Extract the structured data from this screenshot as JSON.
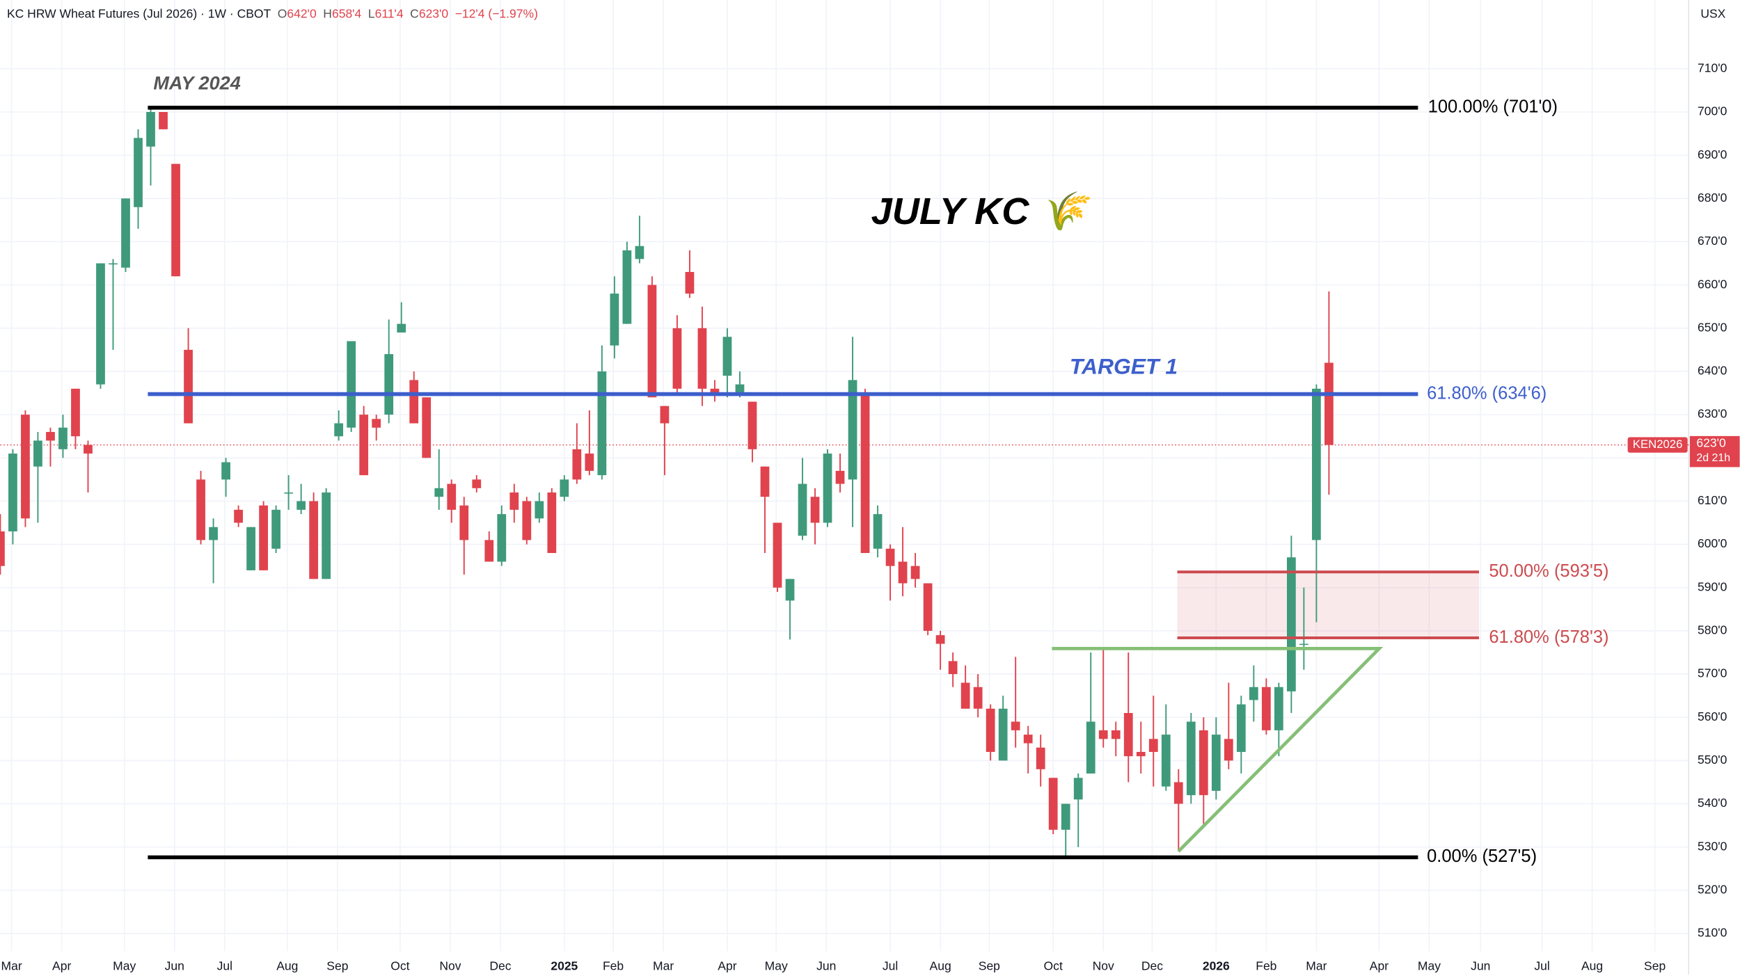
{
  "chart_data": {
    "type": "candlestick",
    "header": {
      "title": "KC HRW Wheat Futures (Jul 2026) · 1W · CBOT",
      "ohlc": [
        {
          "key": "O",
          "value": "642'0"
        },
        {
          "key": "H",
          "value": "658'4"
        },
        {
          "key": "L",
          "value": "611'4"
        },
        {
          "key": "C",
          "value": "623'0"
        }
      ],
      "change": "−12'4 (−1.97%)"
    },
    "currency": "USX",
    "up_color": "#3f9a7b",
    "down_color": "#e0434d",
    "grid": true,
    "xlim": [
      0,
      134.7
    ],
    "ylim": [
      505.9,
      725.9
    ],
    "yticks": [
      {
        "value": 510,
        "label": "510'0"
      },
      {
        "value": 520,
        "label": "520'0"
      },
      {
        "value": 530,
        "label": "530'0"
      },
      {
        "value": 540,
        "label": "540'0"
      },
      {
        "value": 550,
        "label": "550'0"
      },
      {
        "value": 560,
        "label": "560'0"
      },
      {
        "value": 570,
        "label": "570'0"
      },
      {
        "value": 580,
        "label": "580'0"
      },
      {
        "value": 590,
        "label": "590'0"
      },
      {
        "value": 600,
        "label": "600'0"
      },
      {
        "value": 610,
        "label": "610'0"
      },
      {
        "value": 620,
        "label": "620'0"
      },
      {
        "value": 630,
        "label": "630'0"
      },
      {
        "value": 640,
        "label": "640'0"
      },
      {
        "value": 650,
        "label": "650'0"
      },
      {
        "value": 660,
        "label": "660'0"
      },
      {
        "value": 670,
        "label": "670'0"
      },
      {
        "value": 680,
        "label": "680'0"
      },
      {
        "value": 690,
        "label": "690'0"
      },
      {
        "value": 700,
        "label": "700'0"
      },
      {
        "value": 710,
        "label": "710'0"
      }
    ],
    "xticks": [
      {
        "value": 0.9,
        "label": "Mar"
      },
      {
        "value": 4.9,
        "label": "Apr"
      },
      {
        "value": 9.9,
        "label": "May"
      },
      {
        "value": 13.9,
        "label": "Jun"
      },
      {
        "value": 17.9,
        "label": "Jul"
      },
      {
        "value": 22.9,
        "label": "Aug"
      },
      {
        "value": 26.9,
        "label": "Sep"
      },
      {
        "value": 31.9,
        "label": "Oct"
      },
      {
        "value": 35.9,
        "label": "Nov"
      },
      {
        "value": 39.9,
        "label": "Dec"
      },
      {
        "value": 45.0,
        "label": "2025"
      },
      {
        "value": 48.9,
        "label": "Feb"
      },
      {
        "value": 52.9,
        "label": "Mar"
      },
      {
        "value": 58.0,
        "label": "Apr"
      },
      {
        "value": 61.9,
        "label": "May"
      },
      {
        "value": 65.9,
        "label": "Jun"
      },
      {
        "value": 71.0,
        "label": "Jul"
      },
      {
        "value": 75.0,
        "label": "Aug"
      },
      {
        "value": 78.9,
        "label": "Sep"
      },
      {
        "value": 84.0,
        "label": "Oct"
      },
      {
        "value": 88.0,
        "label": "Nov"
      },
      {
        "value": 91.9,
        "label": "Dec"
      },
      {
        "value": 97.0,
        "label": "2026"
      },
      {
        "value": 101.0,
        "label": "Feb"
      },
      {
        "value": 105.0,
        "label": "Mar"
      },
      {
        "value": 110.0,
        "label": "Apr"
      },
      {
        "value": 114.0,
        "label": "May"
      },
      {
        "value": 118.1,
        "label": "Jun"
      },
      {
        "value": 123.0,
        "label": "Jul"
      },
      {
        "value": 127.0,
        "label": "Aug"
      },
      {
        "value": 132.0,
        "label": "Sep"
      }
    ],
    "candles": [
      {
        "o": 603,
        "h": 607,
        "l": 593,
        "c": 595
      },
      {
        "o": 603,
        "h": 622,
        "l": 600,
        "c": 621
      },
      {
        "o": 630,
        "h": 631,
        "l": 604,
        "c": 606
      },
      {
        "o": 618,
        "h": 626,
        "l": 605,
        "c": 624
      },
      {
        "o": 626,
        "h": 627,
        "l": 618,
        "c": 624
      },
      {
        "o": 622,
        "h": 630,
        "l": 620,
        "c": 627
      },
      {
        "o": 636,
        "h": 636,
        "l": 622,
        "c": 625
      },
      {
        "o": 623,
        "h": 624,
        "l": 612,
        "c": 621
      },
      {
        "o": 637,
        "h": 665,
        "l": 636,
        "c": 665
      },
      {
        "o": 665,
        "h": 666,
        "l": 645,
        "c": 665
      },
      {
        "o": 664,
        "h": 680,
        "l": 663,
        "c": 680
      },
      {
        "o": 678,
        "h": 696,
        "l": 673,
        "c": 694
      },
      {
        "o": 692,
        "h": 701,
        "l": 683,
        "c": 700
      },
      {
        "o": 700,
        "h": 700,
        "l": 696,
        "c": 696
      },
      {
        "o": 688,
        "h": 688,
        "l": 662,
        "c": 662
      },
      {
        "o": 645,
        "h": 650,
        "l": 628,
        "c": 628
      },
      {
        "o": 615,
        "h": 617,
        "l": 600,
        "c": 601
      },
      {
        "o": 601,
        "h": 606,
        "l": 591,
        "c": 604
      },
      {
        "o": 615,
        "h": 620,
        "l": 611,
        "c": 619
      },
      {
        "o": 608,
        "h": 609,
        "l": 604,
        "c": 605
      },
      {
        "o": 594,
        "h": 604,
        "l": 594,
        "c": 604
      },
      {
        "o": 609,
        "h": 610,
        "l": 594,
        "c": 594
      },
      {
        "o": 599,
        "h": 609,
        "l": 598,
        "c": 608
      },
      {
        "o": 612,
        "h": 616,
        "l": 608,
        "c": 612
      },
      {
        "o": 608,
        "h": 614,
        "l": 607,
        "c": 610
      },
      {
        "o": 610,
        "h": 612,
        "l": 592,
        "c": 592
      },
      {
        "o": 592,
        "h": 613,
        "l": 592,
        "c": 612
      },
      {
        "o": 625,
        "h": 631,
        "l": 624,
        "c": 628
      },
      {
        "o": 627,
        "h": 647,
        "l": 626,
        "c": 647
      },
      {
        "o": 630,
        "h": 632,
        "l": 616,
        "c": 616
      },
      {
        "o": 629,
        "h": 630,
        "l": 624,
        "c": 627
      },
      {
        "o": 630,
        "h": 652,
        "l": 628,
        "c": 644
      },
      {
        "o": 649,
        "h": 656,
        "l": 649,
        "c": 651
      },
      {
        "o": 638,
        "h": 640,
        "l": 628,
        "c": 628
      },
      {
        "o": 634,
        "h": 634,
        "l": 620,
        "c": 620
      },
      {
        "o": 611,
        "h": 622,
        "l": 608,
        "c": 613
      },
      {
        "o": 614,
        "h": 615,
        "l": 605,
        "c": 608
      },
      {
        "o": 609,
        "h": 611,
        "l": 593,
        "c": 601
      },
      {
        "o": 615,
        "h": 616,
        "l": 612,
        "c": 613
      },
      {
        "o": 601,
        "h": 603,
        "l": 596,
        "c": 596
      },
      {
        "o": 596,
        "h": 609,
        "l": 595,
        "c": 607
      },
      {
        "o": 612,
        "h": 614,
        "l": 605,
        "c": 608
      },
      {
        "o": 610,
        "h": 611,
        "l": 600,
        "c": 601
      },
      {
        "o": 606,
        "h": 612,
        "l": 605,
        "c": 610
      },
      {
        "o": 612,
        "h": 613,
        "l": 598,
        "c": 598
      },
      {
        "o": 611,
        "h": 616,
        "l": 610,
        "c": 615
      },
      {
        "o": 622,
        "h": 628,
        "l": 614,
        "c": 615
      },
      {
        "o": 621,
        "h": 631,
        "l": 616,
        "c": 617
      },
      {
        "o": 616,
        "h": 646,
        "l": 615,
        "c": 640
      },
      {
        "o": 646,
        "h": 662,
        "l": 643,
        "c": 658
      },
      {
        "o": 651,
        "h": 670,
        "l": 651,
        "c": 668
      },
      {
        "o": 666,
        "h": 676,
        "l": 665,
        "c": 669
      },
      {
        "o": 660,
        "h": 662,
        "l": 634,
        "c": 634
      },
      {
        "o": 632,
        "h": 632,
        "l": 616,
        "c": 628
      },
      {
        "o": 650,
        "h": 653,
        "l": 635,
        "c": 636
      },
      {
        "o": 663,
        "h": 668,
        "l": 657,
        "c": 658
      },
      {
        "o": 650,
        "h": 655,
        "l": 632,
        "c": 636
      },
      {
        "o": 636,
        "h": 638,
        "l": 633,
        "c": 635
      },
      {
        "o": 639,
        "h": 650,
        "l": 634,
        "c": 648
      },
      {
        "o": 635,
        "h": 640,
        "l": 634,
        "c": 637
      },
      {
        "o": 633,
        "h": 633,
        "l": 619,
        "c": 622
      },
      {
        "o": 618,
        "h": 618,
        "l": 598,
        "c": 611
      },
      {
        "o": 605,
        "h": 605,
        "l": 589,
        "c": 590
      },
      {
        "o": 587,
        "h": 592,
        "l": 578,
        "c": 592
      },
      {
        "o": 602,
        "h": 620,
        "l": 601,
        "c": 614
      },
      {
        "o": 611,
        "h": 613,
        "l": 600,
        "c": 605
      },
      {
        "o": 605,
        "h": 622,
        "l": 604,
        "c": 621
      },
      {
        "o": 617,
        "h": 621,
        "l": 612,
        "c": 614
      },
      {
        "o": 615,
        "h": 648,
        "l": 604,
        "c": 638
      },
      {
        "o": 635,
        "h": 636,
        "l": 598,
        "c": 598
      },
      {
        "o": 599,
        "h": 609,
        "l": 597,
        "c": 607
      },
      {
        "o": 599,
        "h": 600,
        "l": 587,
        "c": 595
      },
      {
        "o": 596,
        "h": 604,
        "l": 588,
        "c": 591
      },
      {
        "o": 595,
        "h": 598,
        "l": 590,
        "c": 592
      },
      {
        "o": 591,
        "h": 591,
        "l": 579,
        "c": 580
      },
      {
        "o": 579,
        "h": 580,
        "l": 571,
        "c": 577
      },
      {
        "o": 573,
        "h": 575,
        "l": 567,
        "c": 570
      },
      {
        "o": 568,
        "h": 572,
        "l": 562,
        "c": 562
      },
      {
        "o": 567,
        "h": 570,
        "l": 560,
        "c": 562
      },
      {
        "o": 562,
        "h": 563,
        "l": 550,
        "c": 552
      },
      {
        "o": 550,
        "h": 565,
        "l": 550,
        "c": 562
      },
      {
        "o": 559,
        "h": 574,
        "l": 553,
        "c": 557
      },
      {
        "o": 556,
        "h": 558,
        "l": 547,
        "c": 554
      },
      {
        "o": 553,
        "h": 556,
        "l": 544,
        "c": 548
      },
      {
        "o": 546,
        "h": 546,
        "l": 533,
        "c": 534
      },
      {
        "o": 534,
        "h": 540,
        "l": 527.6,
        "c": 540
      },
      {
        "o": 541,
        "h": 547,
        "l": 530,
        "c": 546
      },
      {
        "o": 547,
        "h": 575,
        "l": 547,
        "c": 559
      },
      {
        "o": 557,
        "h": 576,
        "l": 553,
        "c": 555
      },
      {
        "o": 557,
        "h": 559,
        "l": 551,
        "c": 555
      },
      {
        "o": 561,
        "h": 575,
        "l": 545,
        "c": 551
      },
      {
        "o": 552,
        "h": 559,
        "l": 547,
        "c": 551
      },
      {
        "o": 555,
        "h": 565,
        "l": 544,
        "c": 552
      },
      {
        "o": 544,
        "h": 563,
        "l": 543,
        "c": 556
      },
      {
        "o": 545,
        "h": 548,
        "l": 529,
        "c": 540
      },
      {
        "o": 542,
        "h": 561,
        "l": 540,
        "c": 559
      },
      {
        "o": 557,
        "h": 560,
        "l": 535,
        "c": 542
      },
      {
        "o": 543,
        "h": 560,
        "l": 541,
        "c": 556
      },
      {
        "o": 555,
        "h": 568,
        "l": 548,
        "c": 550
      },
      {
        "o": 552,
        "h": 565,
        "l": 547,
        "c": 563
      },
      {
        "o": 564,
        "h": 572,
        "l": 559,
        "c": 567
      },
      {
        "o": 567,
        "h": 569,
        "l": 556,
        "c": 557
      },
      {
        "o": 557,
        "h": 568,
        "l": 551,
        "c": 567
      },
      {
        "o": 566,
        "h": 602,
        "l": 561,
        "c": 597
      },
      {
        "o": 577,
        "h": 590,
        "l": 571,
        "c": 577
      },
      {
        "o": 601,
        "h": 637,
        "l": 582,
        "c": 636
      },
      {
        "o": 642,
        "h": 658.5,
        "l": 611.5,
        "c": 623
      }
    ],
    "last_price": {
      "value": 623,
      "label": "623'0"
    },
    "symbol": "KEN2026",
    "countdown": "2d 21h",
    "levels": [
      {
        "value": 701,
        "label": "100.00% (701'0)",
        "color": "#000000"
      },
      {
        "value": 634.75,
        "label": "61.80% (634'6)",
        "color": "#3d5fcc"
      },
      {
        "value": 527.625,
        "label": "0.00% (527'5)",
        "color": "#000000"
      },
      {
        "value": 593.625,
        "label": "50.00% (593'5)",
        "color": "#cc4b4f"
      },
      {
        "value": 578.375,
        "label": "61.80% (578'3)",
        "color": "#cc4b4f"
      }
    ],
    "annotations": [
      "MAY 2024",
      "JULY KC 🌾",
      "TARGET 1"
    ]
  }
}
